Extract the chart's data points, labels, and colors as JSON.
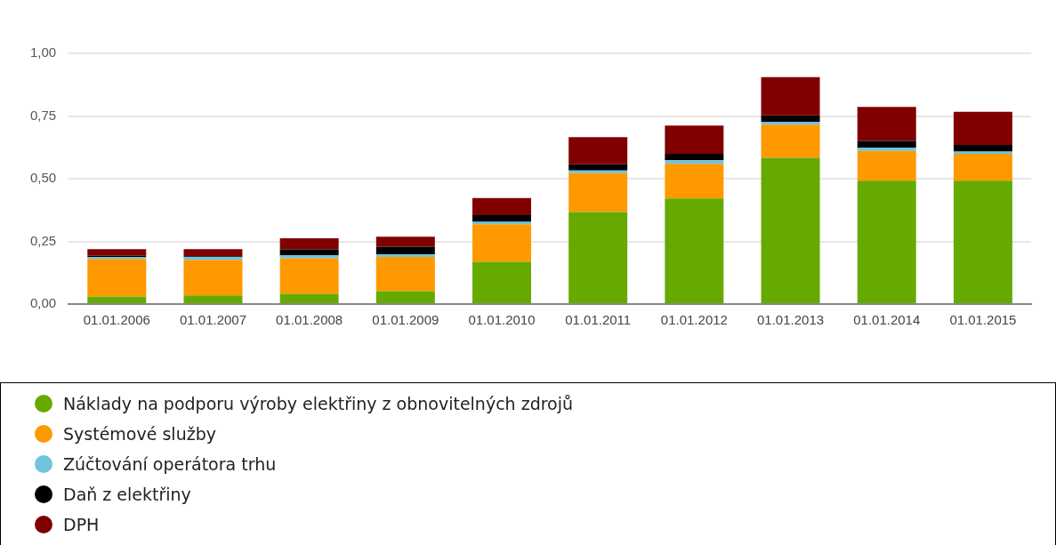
{
  "chart_data": {
    "type": "bar",
    "stacked": true,
    "categories": [
      "01.01.2006",
      "01.01.2007",
      "01.01.2008",
      "01.01.2009",
      "01.01.2010",
      "01.01.2011",
      "01.01.2012",
      "01.01.2013",
      "01.01.2014",
      "01.01.2015"
    ],
    "series": [
      {
        "name": "Náklady na podporu výroby elektřiny z obnovitelných zdrojů",
        "color": "#66aa00",
        "values": [
          0.03,
          0.035,
          0.041,
          0.051,
          0.168,
          0.367,
          0.421,
          0.583,
          0.492,
          0.492
        ]
      },
      {
        "name": "Systémové služby",
        "color": "#ff9900",
        "values": [
          0.15,
          0.141,
          0.142,
          0.137,
          0.15,
          0.155,
          0.138,
          0.132,
          0.119,
          0.107
        ]
      },
      {
        "name": "Zúčtování operátora trhu",
        "color": "#6cc4e0",
        "values": [
          0.008,
          0.012,
          0.011,
          0.01,
          0.01,
          0.011,
          0.015,
          0.011,
          0.013,
          0.009
        ]
      },
      {
        "name": "Daň z elektřiny",
        "color": "#000000",
        "values": [
          0.004,
          0.003,
          0.024,
          0.031,
          0.027,
          0.025,
          0.025,
          0.027,
          0.027,
          0.027
        ]
      },
      {
        "name": "DPH",
        "color": "#800000",
        "values": [
          0.027,
          0.028,
          0.044,
          0.04,
          0.068,
          0.108,
          0.113,
          0.152,
          0.135,
          0.132
        ]
      }
    ],
    "ylim": [
      0,
      1
    ],
    "yticks": [
      {
        "value": 0,
        "label": "0,00"
      },
      {
        "value": 0.25,
        "label": "0,25"
      },
      {
        "value": 0.5,
        "label": "0,50"
      },
      {
        "value": 0.75,
        "label": "0,75"
      },
      {
        "value": 1,
        "label": "1,00"
      }
    ],
    "grid": "y",
    "legend": "bottom"
  }
}
